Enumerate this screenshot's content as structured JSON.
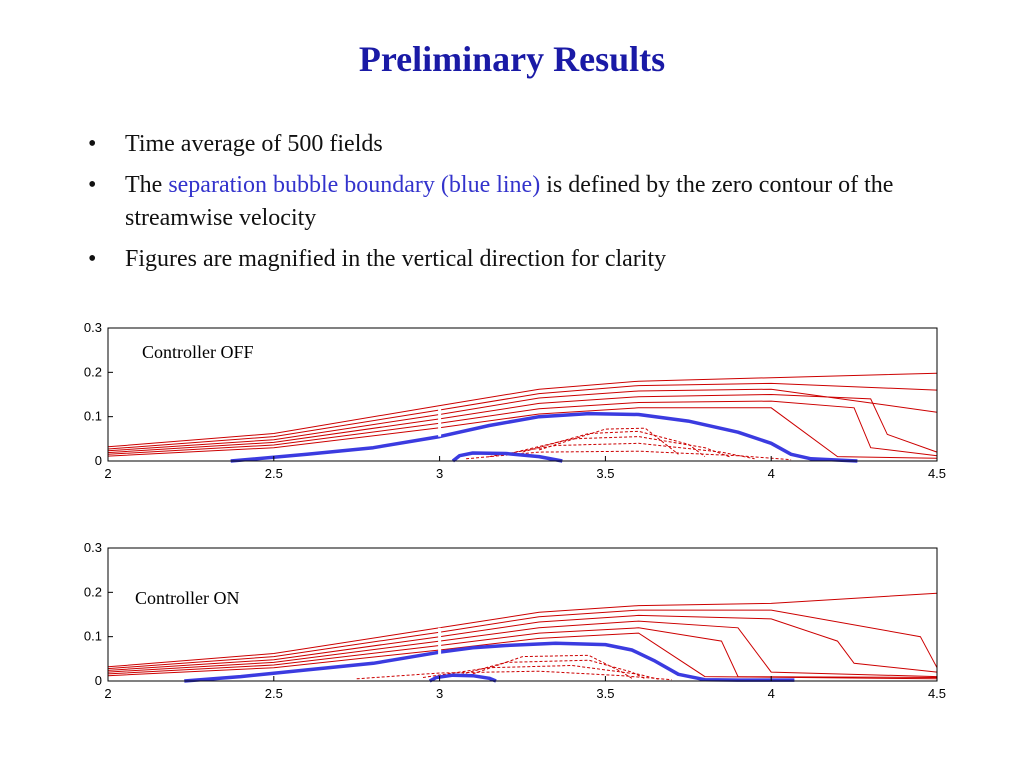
{
  "slide": {
    "title": "Preliminary Results",
    "bullets": [
      {
        "plain": "Time average of 500 fields"
      },
      {
        "pre": "The ",
        "highlight": "separation bubble boundary (blue line)",
        "post": " is defined by the zero contour of the streamwise velocity"
      },
      {
        "plain": "Figures are magnified in the vertical direction for clarity"
      }
    ],
    "bullet_glyph": "•"
  },
  "colors": {
    "title": "#1a1aa6",
    "highlight": "#3333cc",
    "contour": "#cc0000",
    "boundary": "#3b3be0"
  },
  "chart_data": [
    {
      "type": "line",
      "label": "Controller OFF",
      "xlim": [
        2,
        4.5
      ],
      "ylim": [
        0,
        0.3
      ],
      "xticks": [
        "2",
        "2.5",
        "3",
        "3.5",
        "4",
        "4.5"
      ],
      "yticks": [
        "0",
        "0.1",
        "0.2",
        "0.3"
      ],
      "boundary_main": {
        "x": [
          2.37,
          2.6,
          2.8,
          3.0,
          3.15,
          3.3,
          3.45,
          3.6,
          3.75,
          3.9,
          4.0,
          4.06,
          4.12,
          4.26
        ],
        "y": [
          0.0,
          0.015,
          0.03,
          0.055,
          0.08,
          0.1,
          0.107,
          0.105,
          0.09,
          0.065,
          0.04,
          0.015,
          0.005,
          0.0
        ]
      },
      "boundary_small": {
        "x": [
          3.04,
          3.06,
          3.1,
          3.2,
          3.3,
          3.37
        ],
        "y": [
          0.0,
          0.012,
          0.018,
          0.017,
          0.01,
          0.0
        ]
      },
      "contours_solid": [
        {
          "x": [
            2,
            2.5,
            3.0,
            3.3,
            3.6,
            4.0,
            4.5
          ],
          "y": [
            0.032,
            0.062,
            0.125,
            0.162,
            0.18,
            0.188,
            0.198
          ]
        },
        {
          "x": [
            2,
            2.5,
            3.0,
            3.3,
            3.6,
            4.0,
            4.5
          ],
          "y": [
            0.027,
            0.055,
            0.115,
            0.152,
            0.17,
            0.175,
            0.16
          ]
        },
        {
          "x": [
            2,
            2.5,
            3.0,
            3.3,
            3.6,
            4.0,
            4.5
          ],
          "y": [
            0.023,
            0.048,
            0.105,
            0.142,
            0.158,
            0.162,
            0.11
          ]
        },
        {
          "x": [
            2,
            2.5,
            3.0,
            3.3,
            3.6,
            4.0,
            4.3,
            4.35,
            4.5
          ],
          "y": [
            0.019,
            0.042,
            0.095,
            0.13,
            0.145,
            0.15,
            0.14,
            0.06,
            0.02
          ]
        },
        {
          "x": [
            2,
            2.5,
            3.0,
            3.3,
            3.6,
            4.0,
            4.25,
            4.3,
            4.5
          ],
          "y": [
            0.015,
            0.036,
            0.085,
            0.118,
            0.132,
            0.135,
            0.12,
            0.03,
            0.012
          ]
        },
        {
          "x": [
            2,
            2.5,
            3.0,
            3.3,
            3.6,
            4.0,
            4.2,
            4.5
          ],
          "y": [
            0.011,
            0.03,
            0.075,
            0.106,
            0.12,
            0.12,
            0.01,
            0.006
          ]
        }
      ],
      "contours_dashed": [
        {
          "x": [
            3.08,
            3.3,
            3.6,
            3.9,
            4.06
          ],
          "y": [
            0.005,
            0.02,
            0.022,
            0.012,
            0.003
          ]
        },
        {
          "x": [
            3.15,
            3.35,
            3.6,
            3.85,
            3.95
          ],
          "y": [
            0.01,
            0.035,
            0.04,
            0.02,
            0.005
          ]
        },
        {
          "x": [
            3.2,
            3.4,
            3.6,
            3.8,
            3.88
          ],
          "y": [
            0.015,
            0.05,
            0.055,
            0.03,
            0.008
          ]
        },
        {
          "x": [
            3.25,
            3.45,
            3.6,
            3.75,
            3.8
          ],
          "y": [
            0.02,
            0.062,
            0.067,
            0.038,
            0.01
          ]
        },
        {
          "x": [
            3.3,
            3.5,
            3.62,
            3.72
          ],
          "y": [
            0.025,
            0.072,
            0.074,
            0.015
          ]
        }
      ]
    },
    {
      "type": "line",
      "label": "Controller ON",
      "xlim": [
        2,
        4.5
      ],
      "ylim": [
        0,
        0.3
      ],
      "xticks": [
        "2",
        "2.5",
        "3",
        "3.5",
        "4",
        "4.5"
      ],
      "yticks": [
        "0",
        "0.1",
        "0.2",
        "0.3"
      ],
      "boundary_main": {
        "x": [
          2.23,
          2.4,
          2.6,
          2.8,
          3.0,
          3.1,
          3.2,
          3.35,
          3.5,
          3.58,
          3.65,
          3.72,
          3.8,
          3.9,
          4.07
        ],
        "y": [
          0.0,
          0.01,
          0.025,
          0.04,
          0.065,
          0.075,
          0.08,
          0.085,
          0.082,
          0.07,
          0.045,
          0.015,
          0.003,
          0.002,
          0.002
        ]
      },
      "boundary_small": {
        "x": [
          2.97,
          2.99,
          3.04,
          3.1,
          3.15,
          3.17
        ],
        "y": [
          0.0,
          0.008,
          0.013,
          0.012,
          0.006,
          0.0
        ]
      },
      "contours_solid": [
        {
          "x": [
            2,
            2.5,
            3.0,
            3.3,
            3.6,
            4.0,
            4.5
          ],
          "y": [
            0.032,
            0.062,
            0.12,
            0.155,
            0.17,
            0.175,
            0.198
          ]
        },
        {
          "x": [
            2,
            2.5,
            3.0,
            3.3,
            3.6,
            4.0,
            4.45,
            4.5
          ],
          "y": [
            0.028,
            0.055,
            0.11,
            0.145,
            0.16,
            0.16,
            0.1,
            0.03
          ]
        },
        {
          "x": [
            2,
            2.5,
            3.0,
            3.3,
            3.6,
            4.0,
            4.2,
            4.25,
            4.5
          ],
          "y": [
            0.024,
            0.048,
            0.1,
            0.133,
            0.148,
            0.14,
            0.09,
            0.04,
            0.02
          ]
        },
        {
          "x": [
            2,
            2.5,
            3.0,
            3.3,
            3.6,
            3.9,
            4.0,
            4.5
          ],
          "y": [
            0.02,
            0.042,
            0.09,
            0.12,
            0.135,
            0.12,
            0.02,
            0.01
          ]
        },
        {
          "x": [
            2,
            2.5,
            3.0,
            3.3,
            3.6,
            3.85,
            3.9,
            4.5
          ],
          "y": [
            0.016,
            0.036,
            0.08,
            0.108,
            0.12,
            0.09,
            0.01,
            0.008
          ]
        },
        {
          "x": [
            2,
            2.5,
            3.0,
            3.3,
            3.6,
            3.8,
            4.5
          ],
          "y": [
            0.012,
            0.03,
            0.07,
            0.096,
            0.108,
            0.01,
            0.005
          ]
        }
      ],
      "contours_dashed": [
        {
          "x": [
            2.75,
            3.0,
            3.3,
            3.55,
            3.7
          ],
          "y": [
            0.005,
            0.018,
            0.022,
            0.012,
            0.003
          ]
        },
        {
          "x": [
            2.95,
            3.15,
            3.4,
            3.6,
            3.66
          ],
          "y": [
            0.008,
            0.03,
            0.035,
            0.015,
            0.004
          ]
        },
        {
          "x": [
            3.05,
            3.2,
            3.45,
            3.58,
            3.62
          ],
          "y": [
            0.012,
            0.042,
            0.047,
            0.02,
            0.005
          ]
        },
        {
          "x": [
            3.1,
            3.25,
            3.45,
            3.55,
            3.58
          ],
          "y": [
            0.016,
            0.055,
            0.058,
            0.02,
            0.006
          ]
        }
      ]
    }
  ]
}
